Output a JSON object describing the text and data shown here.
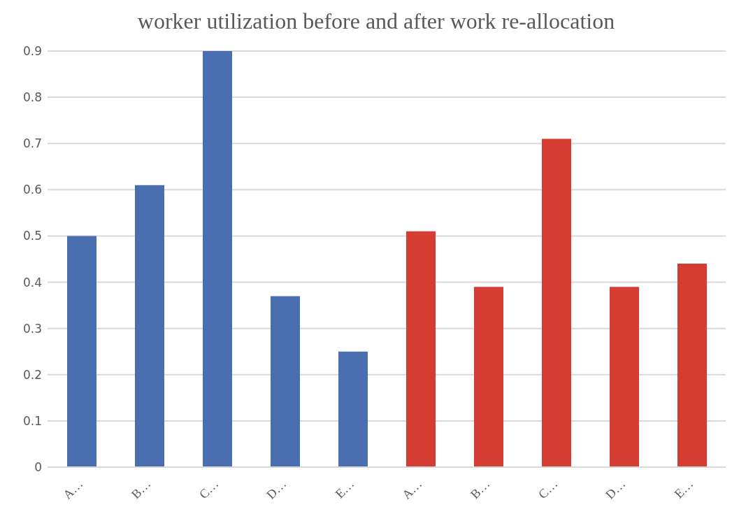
{
  "chart_data": {
    "type": "bar",
    "title": "worker utilization before and after work re-allocation",
    "categories": [
      "A…",
      "B…",
      "C…",
      "D…",
      "E…",
      "A…",
      "B…",
      "C…",
      "D…",
      "E…"
    ],
    "values": [
      0.5,
      0.61,
      0.9,
      0.37,
      0.25,
      0.51,
      0.39,
      0.71,
      0.39,
      0.44
    ],
    "colors": [
      "#4a6fb0",
      "#4a6fb0",
      "#4a6fb0",
      "#4a6fb0",
      "#4a6fb0",
      "#d63d32",
      "#d63d32",
      "#d63d32",
      "#d63d32",
      "#d63d32"
    ],
    "ylim": [
      0,
      0.9
    ],
    "yticks": [
      0,
      0.1,
      0.2,
      0.3,
      0.4,
      0.5,
      0.6,
      0.7,
      0.8,
      0.9
    ],
    "grid": "y",
    "legend": false
  }
}
